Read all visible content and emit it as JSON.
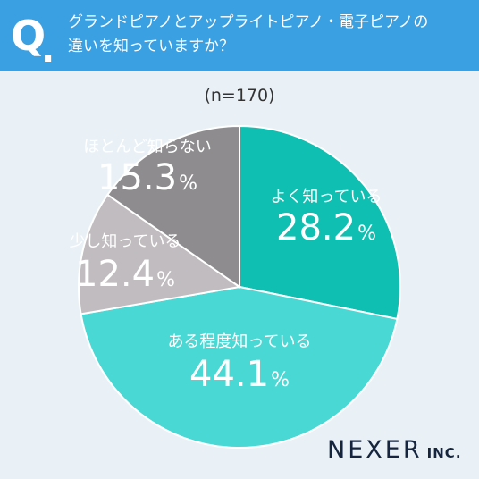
{
  "header": {
    "q_mark": "Q",
    "q_dot": ".",
    "question_line1": "グランドピアノとアップライトピアノ・電子ピアノの",
    "question_line2": "違いを知っていますか？"
  },
  "sample_size": "(n=170)",
  "logo": {
    "brand": "NEXER",
    "suffix": "INC."
  },
  "colors": {
    "header": "#3aa0e2",
    "background": "#e9f1f7",
    "slice1": "#0fbfb1",
    "slice2": "#4ad8d4",
    "slice3": "#c0bcbf",
    "slice4": "#8e8c8f"
  },
  "chart_data": {
    "type": "pie",
    "title": "",
    "categories": [
      "よく知っている",
      "ある程度知っている",
      "少し知っている",
      "ほとんど知らない"
    ],
    "values": [
      28.2,
      44.1,
      12.4,
      15.3
    ],
    "value_labels": [
      "28.2",
      "44.1",
      "12.4",
      "15.3"
    ],
    "unit": "%",
    "start_angle": "12 o'clock",
    "direction": "clockwise"
  }
}
